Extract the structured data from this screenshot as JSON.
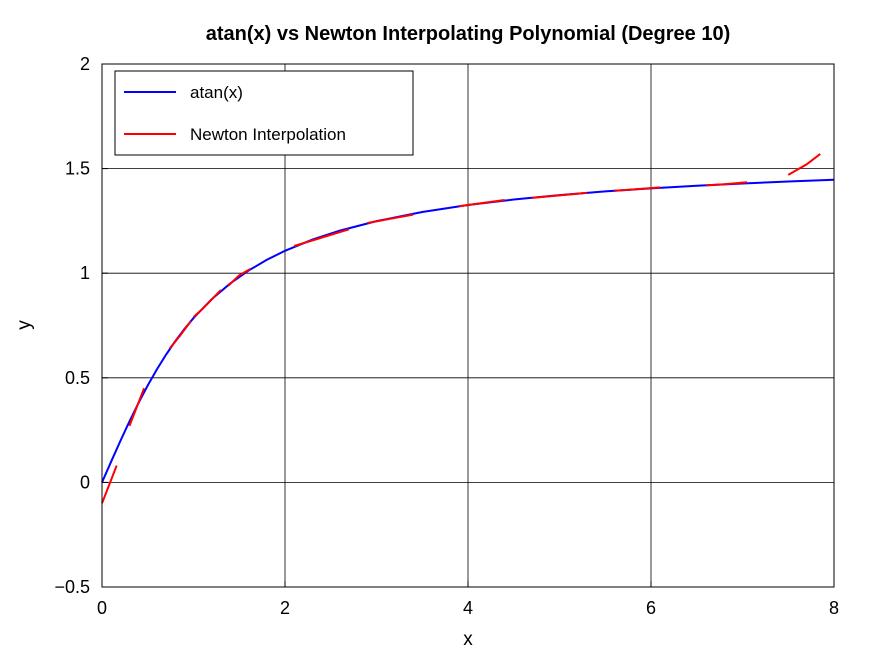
{
  "chart_data": {
    "type": "line",
    "title": "atan(x) vs Newton Interpolating Polynomial (Degree 10)",
    "xlabel": "x",
    "ylabel": "y",
    "xlim": [
      0,
      8
    ],
    "ylim": [
      -0.5,
      2
    ],
    "xticks": [
      0,
      2,
      4,
      6,
      8
    ],
    "xtick_labels": [
      "0",
      "2",
      "4",
      "6",
      "8"
    ],
    "yticks": [
      -0.5,
      0,
      0.5,
      1,
      1.5,
      2
    ],
    "ytick_labels": [
      "−0.5",
      "0",
      "0.5",
      "1",
      "1.5",
      "2"
    ],
    "grid": true,
    "legend_position": "top-left",
    "series": [
      {
        "name": "atan(x)",
        "color": "#0000ff",
        "style": "continuous",
        "x": [
          0,
          0.1,
          0.2,
          0.3,
          0.4,
          0.5,
          0.6,
          0.7,
          0.8,
          0.9,
          1.0,
          1.2,
          1.4,
          1.6,
          1.8,
          2.0,
          2.3,
          2.6,
          3.0,
          3.5,
          4.0,
          4.5,
          5.0,
          5.5,
          6.0,
          6.5,
          7.0,
          7.5,
          8.0
        ],
        "y": [
          0,
          0.0997,
          0.1974,
          0.2915,
          0.3805,
          0.4636,
          0.5404,
          0.6107,
          0.6747,
          0.7328,
          0.7854,
          0.8761,
          0.9505,
          1.0122,
          1.0637,
          1.1071,
          1.1607,
          1.2036,
          1.249,
          1.2925,
          1.3258,
          1.3521,
          1.3734,
          1.3909,
          1.4056,
          1.4181,
          1.4289,
          1.4382,
          1.4464
        ]
      },
      {
        "name": "Newton Interpolation",
        "color": "#ff0000",
        "style": "segments",
        "segments": [
          {
            "x": [
              0.0,
              0.08,
              0.16
            ],
            "y": [
              -0.1,
              -0.01,
              0.08
            ]
          },
          {
            "x": [
              0.3,
              0.38,
              0.46
            ],
            "y": [
              0.27,
              0.36,
              0.45
            ]
          },
          {
            "x": [
              0.74,
              0.85,
              0.97
            ],
            "y": [
              0.64,
              0.7,
              0.77
            ]
          },
          {
            "x": [
              1.0,
              1.1,
              1.3
            ],
            "y": [
              0.79,
              0.83,
              0.92
            ]
          },
          {
            "x": [
              1.38,
              1.5,
              1.62
            ],
            "y": [
              0.94,
              0.99,
              1.02
            ]
          },
          {
            "x": [
              2.1,
              2.4,
              2.7
            ],
            "y": [
              1.13,
              1.17,
              1.21
            ]
          },
          {
            "x": [
              2.9,
              3.15,
              3.4
            ],
            "y": [
              1.24,
              1.26,
              1.28
            ]
          },
          {
            "x": [
              3.9,
              4.15,
              4.4
            ],
            "y": [
              1.32,
              1.335,
              1.35
            ]
          },
          {
            "x": [
              4.7,
              5.0,
              5.3
            ],
            "y": [
              1.36,
              1.372,
              1.384
            ]
          },
          {
            "x": [
              5.6,
              5.85,
              6.1
            ],
            "y": [
              1.394,
              1.402,
              1.41
            ]
          },
          {
            "x": [
              6.6,
              6.8,
              7.05
            ],
            "y": [
              1.42,
              1.425,
              1.435
            ]
          },
          {
            "x": [
              7.5,
              7.7,
              7.85
            ],
            "y": [
              1.47,
              1.52,
              1.57
            ]
          }
        ]
      }
    ]
  }
}
